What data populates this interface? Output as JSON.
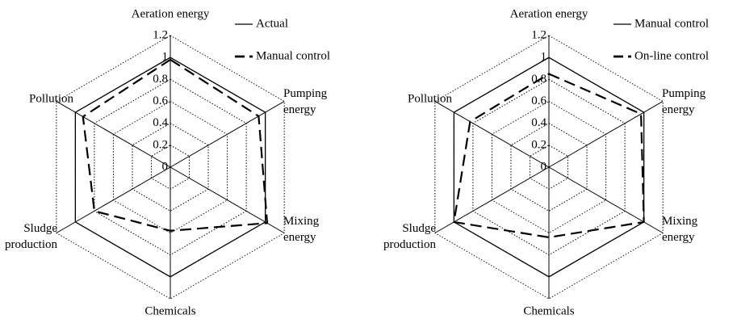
{
  "chart_data": [
    {
      "type": "radar",
      "categories": [
        "Aeration energy",
        "Pumping energy",
        "Mixing energy",
        "Chemicals",
        "Sludge production",
        "Pollution"
      ],
      "series": [
        {
          "name": "Actual",
          "color": "#000000",
          "dash": "solid",
          "values": [
            1,
            1,
            1,
            1,
            1,
            1
          ]
        },
        {
          "name": "Manual control",
          "color": "#000000",
          "dash": "dashed",
          "values": [
            0.98,
            0.93,
            1.02,
            0.58,
            0.8,
            0.92
          ]
        }
      ],
      "ylim": [
        0,
        1.2
      ],
      "yticks": [
        0,
        0.2,
        0.4,
        0.6,
        0.8,
        1,
        1.2
      ],
      "grid": true,
      "legend": "upper right"
    },
    {
      "type": "radar",
      "categories": [
        "Aeration energy",
        "Pumping energy",
        "Mixing energy",
        "Chemicals",
        "Sludge production",
        "Pollution"
      ],
      "series": [
        {
          "name": "Manual control",
          "color": "#000000",
          "dash": "solid",
          "values": [
            1,
            1,
            1,
            1,
            1,
            1
          ]
        },
        {
          "name": "On-line control",
          "color": "#000000",
          "dash": "dashed",
          "values": [
            0.85,
            0.97,
            1,
            0.64,
            1,
            0.83
          ]
        }
      ],
      "ylim": [
        0,
        1.2
      ],
      "yticks": [
        0,
        0.2,
        0.4,
        0.6,
        0.8,
        1,
        1.2
      ],
      "grid": true,
      "legend": "upper right"
    }
  ]
}
